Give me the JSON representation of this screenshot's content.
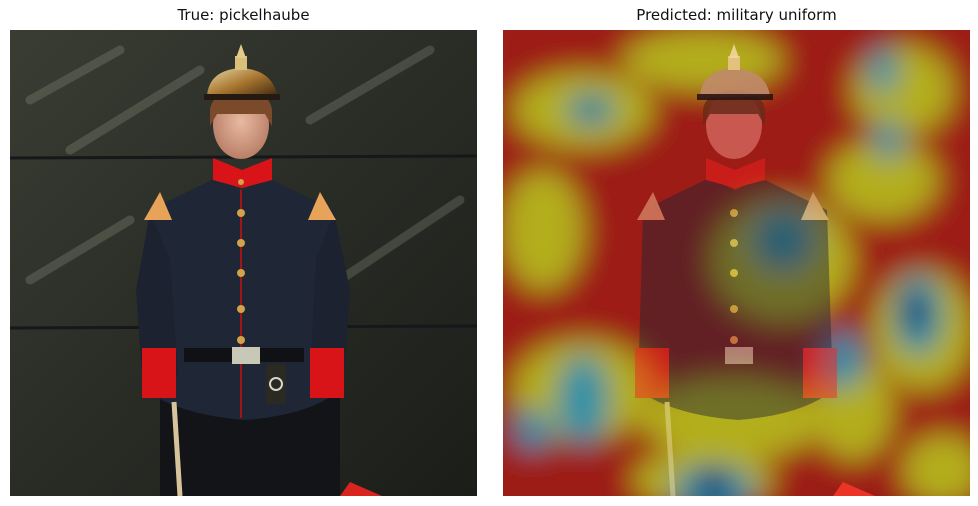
{
  "figure": {
    "left_title": "True: pickelhaube",
    "right_title": "Predicted: military uniform"
  },
  "colors": {
    "background": "#ffffff",
    "wall": "#2c2f27",
    "jacket": "#1f2635",
    "collar_cuffs": "#d91418",
    "buttons": "#d1a34a",
    "heatmap_hot": "#a51414",
    "heatmap_mid": "#b7c018",
    "heatmap_cool": "#1a7fa8",
    "heatmap_cold": "#05106e"
  },
  "icons": {
    "left_image": "photo-soldier-pickelhaube",
    "right_image": "photo-soldier-gradcam-overlay"
  }
}
